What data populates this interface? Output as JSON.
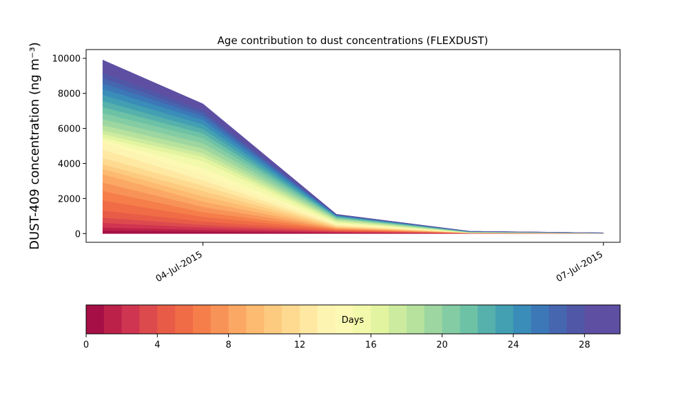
{
  "chart_data": {
    "type": "area",
    "title": "Age contribution to dust concentrations (FLEXDUST)",
    "xlabel": "",
    "ylabel": "DUST-409 concentration (ng m⁻³)",
    "x": [
      "2015-07-03T06:00",
      "2015-07-04T00:00",
      "2015-07-05T00:00",
      "2015-07-06T00:00",
      "2015-07-07T00:00"
    ],
    "x_tick_labels": [
      {
        "date": "2015-07-04T00:00",
        "label": "04-Jul-2015"
      },
      {
        "date": "2015-07-07T00:00",
        "label": "07-Jul-2015"
      }
    ],
    "xlim": [
      "2015-07-03T03:00",
      "2015-07-07T03:00"
    ],
    "ylim": [
      -500,
      10500
    ],
    "y_ticks": [
      0,
      2000,
      4000,
      6000,
      8000,
      10000
    ],
    "series_count": 30,
    "stack_totals": [
      9900,
      7400,
      1100,
      130,
      40
    ],
    "cumulative_profile": [
      [
        0,
        0,
        0,
        0,
        0
      ],
      [
        400,
        250,
        80,
        10,
        4
      ],
      [
        1100,
        600,
        160,
        20,
        7
      ],
      [
        2400,
        1200,
        250,
        30,
        10
      ],
      [
        3500,
        1900,
        330,
        40,
        12
      ],
      [
        4100,
        2600,
        420,
        45,
        14
      ],
      [
        5200,
        3300,
        530,
        55,
        17
      ],
      [
        5500,
        4200,
        650,
        60,
        20
      ],
      [
        6000,
        4700,
        800,
        70,
        24
      ],
      [
        6800,
        5400,
        900,
        90,
        28
      ],
      [
        7600,
        6000,
        980,
        105,
        32
      ],
      [
        8400,
        6600,
        1040,
        120,
        36
      ],
      [
        9100,
        7000,
        1080,
        127,
        38
      ],
      [
        9900,
        7400,
        1100,
        130,
        40
      ]
    ],
    "colorbar": {
      "label": "Days",
      "min": 0,
      "max": 30,
      "ticks": [
        0,
        4,
        8,
        12,
        16,
        20,
        24,
        28
      ],
      "colors": [
        "#a50f45",
        "#bb2149",
        "#cf3550",
        "#dd4a4d",
        "#e85c47",
        "#f06c46",
        "#f57e4a",
        "#f89357",
        "#fba865",
        "#fdbb71",
        "#fdcb80",
        "#feda91",
        "#fee8a2",
        "#fef4b2",
        "#fbf9b3",
        "#f2f9aa",
        "#e3f4a1",
        "#cdeb9e",
        "#b6e29e",
        "#9dd6a0",
        "#84cca4",
        "#6dc2a6",
        "#56b0ab",
        "#439fb2",
        "#3a8cb9",
        "#3c78b8",
        "#4666b0",
        "#5157a7",
        "#5e4fa2",
        "#5e4fa2"
      ],
      "inside_label": "Days"
    },
    "legend": "none",
    "grid": false
  }
}
